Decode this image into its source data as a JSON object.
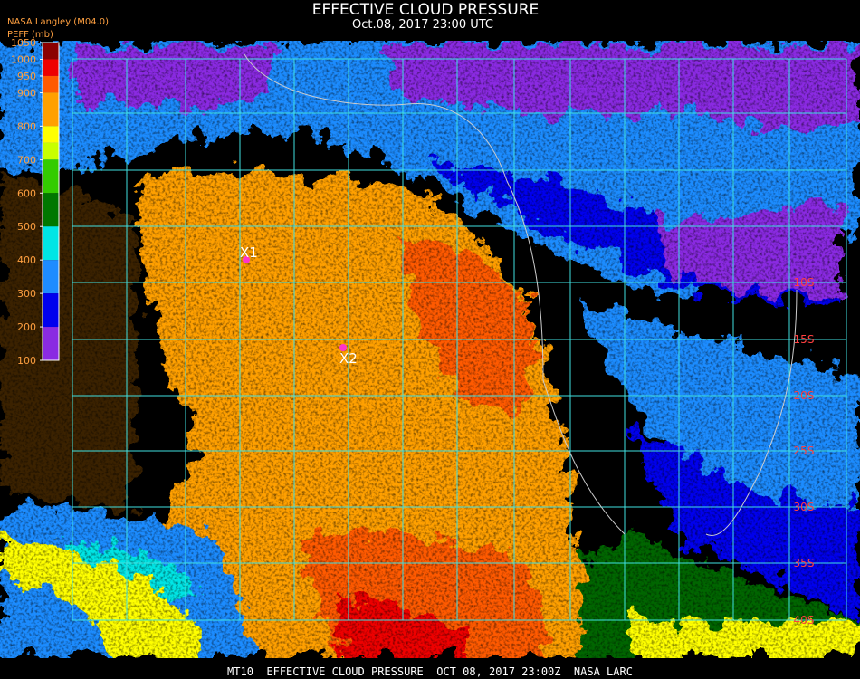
{
  "header": {
    "title": "EFFECTIVE CLOUD PRESSURE",
    "subtitle": "Oct.08, 2017 23:00 UTC",
    "source": "NASA Langley (M04.0)",
    "colorbar_label": "PEFF (mb)"
  },
  "colorbar": {
    "range": [
      100,
      1050
    ],
    "ticks": [
      1050,
      1000,
      950,
      900,
      800,
      700,
      600,
      500,
      400,
      300,
      200,
      100
    ],
    "segments": [
      {
        "min": 1000,
        "max": 1050,
        "color": "#8b0000"
      },
      {
        "min": 950,
        "max": 1000,
        "color": "#ee0000"
      },
      {
        "min": 900,
        "max": 950,
        "color": "#ff5a00"
      },
      {
        "min": 800,
        "max": 900,
        "color": "#ffa000"
      },
      {
        "min": 750,
        "max": 800,
        "color": "#ffff00"
      },
      {
        "min": 700,
        "max": 750,
        "color": "#c8ff00"
      },
      {
        "min": 600,
        "max": 700,
        "color": "#33cc00"
      },
      {
        "min": 500,
        "max": 600,
        "color": "#007700"
      },
      {
        "min": 400,
        "max": 500,
        "color": "#00e5e5"
      },
      {
        "min": 300,
        "max": 400,
        "color": "#1e8cff"
      },
      {
        "min": 200,
        "max": 300,
        "color": "#0000ee"
      },
      {
        "min": 100,
        "max": 200,
        "color": "#8a2be2"
      }
    ]
  },
  "markers": [
    {
      "label": "X1"
    },
    {
      "label": "X2"
    }
  ],
  "lat_labels": [
    "10S",
    "15S",
    "20S",
    "25S",
    "30S",
    "35S",
    "40S"
  ],
  "footer": "MT10  EFFECTIVE CLOUD PRESSURE  OCT 08, 2017 23:00Z  NASA LARC"
}
